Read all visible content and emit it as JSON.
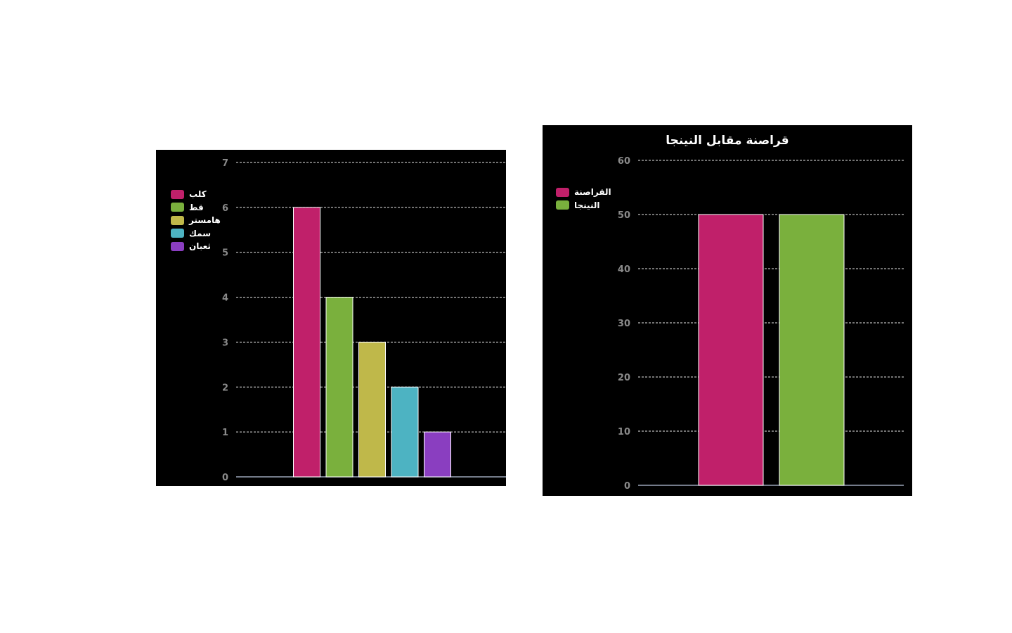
{
  "chart_data": [
    {
      "type": "bar",
      "title": "",
      "categories": [
        "كلب",
        "قط",
        "هامستر",
        "سمك",
        "ثعبان"
      ],
      "values": [
        6,
        4,
        3,
        2,
        1
      ],
      "colors": [
        "#c0206a",
        "#7ab03d",
        "#bfb84a",
        "#4db3c2",
        "#8a3ec0"
      ],
      "ylim": [
        0,
        7
      ],
      "yticks": [
        0,
        1,
        2,
        3,
        4,
        5,
        6,
        7
      ],
      "grid": true,
      "legend": "top-left"
    },
    {
      "type": "bar",
      "title": "قراصنة مقابل النينجا",
      "categories": [
        "القراصنة",
        "النينجا"
      ],
      "values": [
        50,
        50
      ],
      "colors": [
        "#c0206a",
        "#7ab03d"
      ],
      "ylim": [
        0,
        60
      ],
      "yticks": [
        0,
        10,
        20,
        30,
        40,
        50,
        60
      ],
      "grid": true,
      "legend": "top-left"
    }
  ]
}
